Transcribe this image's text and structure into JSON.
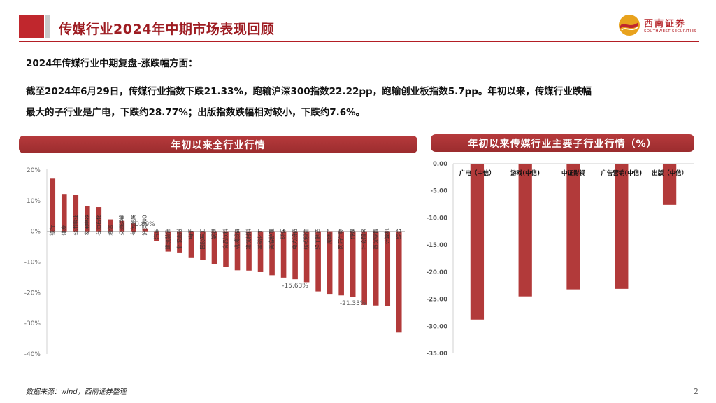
{
  "header": {
    "title": "传媒行业2024年中期市场表现回顾",
    "logo_text": "西南证券",
    "logo_subtext": "SOUTHWEST SECURITIES"
  },
  "body": {
    "subheading": "2024年传媒行业中期复盘-涨跌幅方面：",
    "paragraph_line1": "截至2024年6月29日，传媒行业指数下跌21.33%，跑输沪深300指数22.22pp，跑输创业板指数5.7pp。年初以来，传媒行业跌幅",
    "paragraph_line2": "最大的子行业是广电，下跌约28.77%；出版指数跌幅相对较小，下跌约7.6%。"
  },
  "colors": {
    "bar": "#b23a3a",
    "accent": "#b31e24"
  },
  "chart_data": [
    {
      "type": "bar",
      "title": "年初以来全行业行情",
      "ylim": [
        -40,
        20
      ],
      "yticks": [
        "20%",
        "10%",
        "0%",
        "-10%",
        "-20%",
        "-30%",
        "-40%"
      ],
      "categories": [
        "银行",
        "煤炭",
        "公用事业",
        "家用电器",
        "石油石化",
        "通信",
        "交通运输",
        "有色金属",
        "沪深300",
        "汽车",
        "建筑装饰",
        "非银金融",
        "电子",
        "国防军工",
        "钢铁",
        "食品饮料",
        "机械设备",
        "建筑材料",
        "基础化工",
        "美容护理",
        "环保",
        "电力设备",
        "纺织服饰",
        "轻工制造",
        "房地产",
        "医药生物",
        "传媒",
        "社会服务",
        "商贸零售",
        "计算机",
        "综合"
      ],
      "values": [
        17.2,
        12.2,
        11.8,
        8.3,
        7.9,
        3.9,
        3.4,
        2.6,
        0.89,
        -3.2,
        -6.6,
        -6.9,
        -8.7,
        -9.2,
        -10.7,
        -11.5,
        -12.7,
        -12.8,
        -13.3,
        -14.3,
        -15.1,
        -15.63,
        -16.6,
        -19.6,
        -20.4,
        -20.9,
        -21.33,
        -24.0,
        -24.2,
        -24.3,
        -33.0
      ],
      "annotations": [
        {
          "category": "沪深300",
          "text": "0.89%"
        },
        {
          "category": "电力设备",
          "text": "-15.63%"
        },
        {
          "category": "传媒",
          "text": "-21.33%"
        }
      ]
    },
    {
      "type": "bar",
      "title": "年初以来传媒行业主要子行业行情（%）",
      "ylim": [
        -35,
        0
      ],
      "yticks": [
        "0.00",
        "-5.00",
        "-10.00",
        "-15.00",
        "-20.00",
        "-25.00",
        "-30.00",
        "-35.00"
      ],
      "categories": [
        "广电（中信）",
        "游戏(中信)",
        "中证影视",
        "广告营销(中信)",
        "出版（中信）"
      ],
      "values": [
        -28.77,
        -24.5,
        -23.2,
        -23.1,
        -7.6
      ]
    }
  ],
  "footer": {
    "source": "数据来源：wind，西南证券整理",
    "page_number": "2"
  }
}
